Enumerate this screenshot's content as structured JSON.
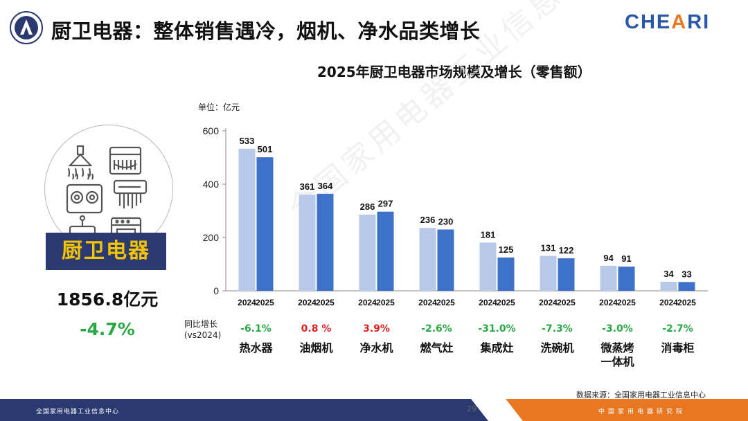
{
  "header": {
    "title": "厨卫电器：整体销售遇冷，烟机、净水品类增长",
    "brand": "CHEARI",
    "brand_prefix": "CHE",
    "brand_accent": "A",
    "brand_suffix": "RI"
  },
  "left_panel": {
    "category": "厨卫电器",
    "total_value": "1856.8亿元",
    "total_growth": "-4.7%"
  },
  "watermark": "全国家用电器工业信息中心",
  "growth_caption": "同比增长\n(vs2024)",
  "source": "数据来源：全国家用电器工业信息中心",
  "footer": {
    "left_text": "全国家用电器工业信息中心",
    "page_number": "29",
    "right_text": "中国家用电器研究院"
  },
  "colors": {
    "series_2024": "#b7c8e8",
    "series_2025": "#3d72c8",
    "growth_negative": "#27a844",
    "growth_positive": "#e02020",
    "banner": "#2a3a70",
    "banner_text": "#f4c400",
    "footer_blue": "#2a3a70",
    "footer_orange": "#e87722"
  },
  "icons": [
    "range-hood-icon",
    "dishwasher-icon",
    "gas-stove-icon",
    "water-heater-icon",
    "water-purifier-icon",
    "oven-icon"
  ],
  "chart_data": {
    "type": "bar",
    "title": "2025年厨卫电器市场规模及增长（零售额）",
    "unit": "单位：亿元",
    "categories": [
      "热水器",
      "油烟机",
      "净水机",
      "燃气灶",
      "集成灶",
      "洗碗机",
      "微蒸烤一体机",
      "消毒柜"
    ],
    "category_lines": [
      [
        "热水器"
      ],
      [
        "油烟机"
      ],
      [
        "净水机"
      ],
      [
        "燃气灶"
      ],
      [
        "集成灶"
      ],
      [
        "洗碗机"
      ],
      [
        "微蒸烤",
        "一体机"
      ],
      [
        "消毒柜"
      ]
    ],
    "series": [
      {
        "name": "2024",
        "values": [
          533,
          361,
          286,
          236,
          181,
          131,
          94,
          34
        ]
      },
      {
        "name": "2025",
        "values": [
          501,
          364,
          297,
          230,
          125,
          122,
          91,
          33
        ]
      }
    ],
    "growth": [
      "-6.1%",
      "0.8 %",
      "3.9%",
      "-2.6%",
      "-31.0%",
      "-7.3%",
      "-3.0%",
      "-2.7%"
    ],
    "growth_sign": [
      "negative",
      "positive",
      "positive",
      "negative",
      "negative",
      "negative",
      "negative",
      "negative"
    ],
    "yticks": [
      0,
      200,
      400,
      600
    ],
    "ylim": [
      0,
      600
    ]
  }
}
